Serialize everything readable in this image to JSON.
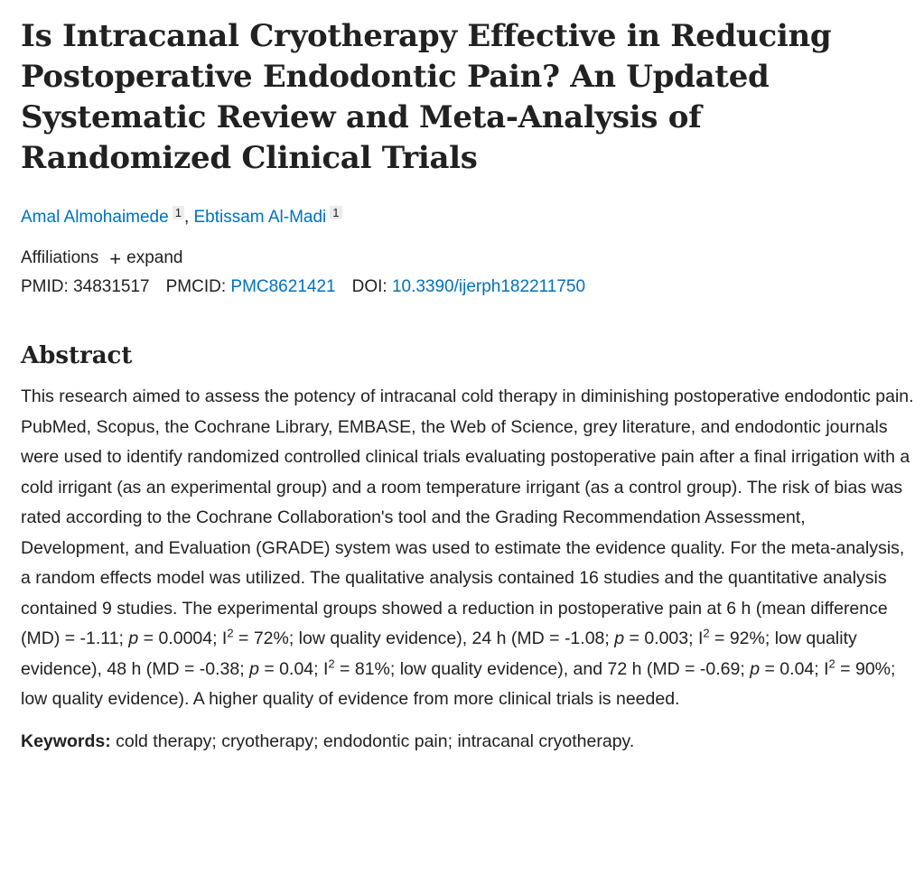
{
  "article": {
    "title": "Is Intracanal Cryotherapy Effective in Reducing Postoperative Endodontic Pain? An Updated Systematic Review and Meta-Analysis of Randomized Clinical Trials",
    "authors": [
      {
        "name": "Amal Almohaimede",
        "aff": "1"
      },
      {
        "name": "Ebtissam Al-Madi",
        "aff": "1"
      }
    ],
    "author_sep": ",",
    "affiliations_label": "Affiliations",
    "expand_label": "expand",
    "pmid_label": "PMID:",
    "pmid": "34831517",
    "pmcid_label": "PMCID:",
    "pmcid": "PMC8621421",
    "doi_label": "DOI:",
    "doi": "10.3390/ijerph182211750"
  },
  "abstract": {
    "heading": "Abstract",
    "p1": "This research aimed to assess the potency of intracanal cold therapy in diminishing postoperative endodontic pain. PubMed, Scopus, the Cochrane Library, EMBASE, the Web of Science, grey literature, and endodontic journals were used to identify randomized controlled clinical trials evaluating postoperative pain after a final irrigation with a cold irrigant (as an experimental group) and a room temperature irrigant (as a control group). The risk of bias was rated according to the Cochrane Collaboration's tool and the Grading Recommendation Assessment, Development, and Evaluation (GRADE) system was used to estimate the evidence quality. For the meta-analysis, a random effects model was utilized. The qualitative analysis contained 16 studies and the quantitative analysis contained 9 studies. The experimental groups showed a reduction in postoperative pain at 6 h (mean difference (MD) = -1.11; ",
    "p": "p",
    "v1": " = 0.0004; I",
    "sq": "2",
    "r1": " = 72%; low quality evidence), 24 h (MD = -1.08; ",
    "v2": " = 0.003; I",
    "r2": " = 92%; low quality evidence), 48 h (MD = -0.38; ",
    "v3": " = 0.04; I",
    "r3": " = 81%; low quality evidence), and 72 h (MD = -0.69; ",
    "v4": " = 0.04; I",
    "r4": " = 90%; low quality evidence). A higher quality of evidence from more clinical trials is needed."
  },
  "keywords": {
    "label": "Keywords:",
    "text": " cold therapy; cryotherapy; endodontic pain; intracanal cryotherapy."
  }
}
